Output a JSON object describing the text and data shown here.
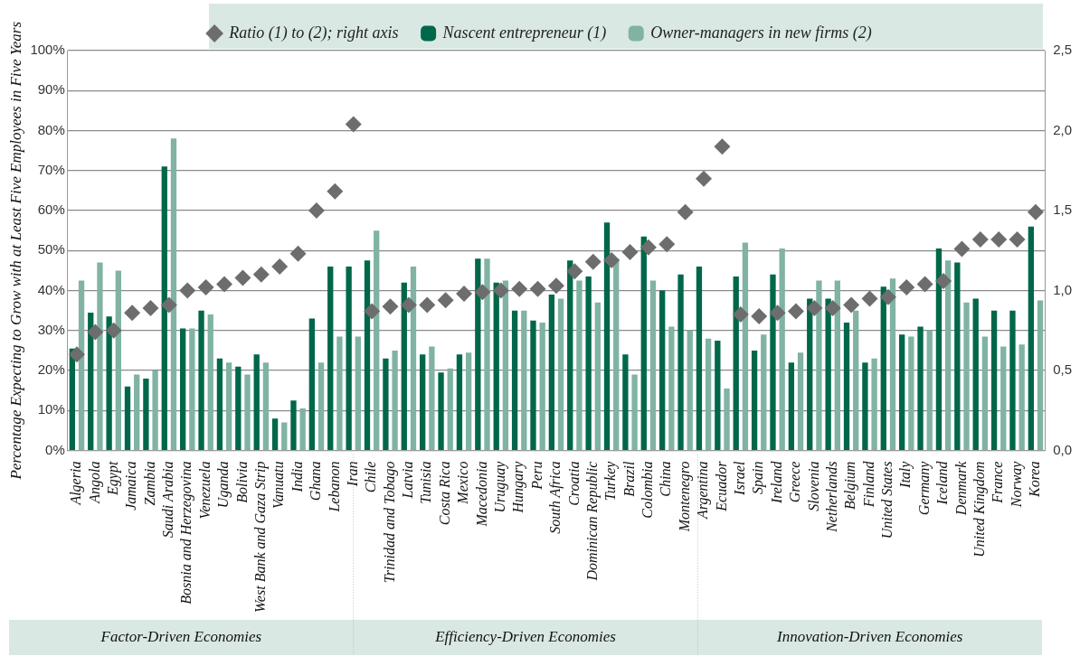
{
  "chart_data": {
    "type": "bar",
    "ylabel": "Percentage Expecting to Grow with at Least Five Employees in Five Years",
    "categories": [
      "Algeria",
      "Angola",
      "Egypt",
      "Jamaica",
      "Zambia",
      "Saudi Arabia",
      "Bosnia and Herzegovina",
      "Venezuela",
      "Uganda",
      "Bolivia",
      "West Bank and Gaza Strip",
      "Vanuatu",
      "India",
      "Ghana",
      "Lebanon",
      "Iran",
      "Chile",
      "Trinidad and Tobago",
      "Latvia",
      "Tunisia",
      "Costa Rica",
      "Mexico",
      "Macedonia",
      "Uruguay",
      "Hungary",
      "Peru",
      "South Africa",
      "Croatia",
      "Dominican Republic",
      "Turkey",
      "Brazil",
      "Colombia",
      "China",
      "Montenegro",
      "Argentina",
      "Ecuador",
      "Israel",
      "Spain",
      "Ireland",
      "Greece",
      "Slovenia",
      "Netherlands",
      "Belgium",
      "Finland",
      "United States",
      "Italy",
      "Germany",
      "Iceland",
      "Denmark",
      "United Kingdom",
      "France",
      "Norway",
      "Korea"
    ],
    "series": [
      {
        "name": "Nascent entrepreneur (1)",
        "color": "#00674a",
        "values": [
          25.5,
          34.5,
          33.5,
          16,
          18,
          71,
          30.5,
          35,
          23,
          21,
          24,
          8,
          12.5,
          33,
          46,
          46,
          47.5,
          23,
          42,
          24,
          19.5,
          24,
          48,
          42,
          35,
          32.5,
          39,
          47.5,
          43.5,
          57,
          24,
          53.5,
          40,
          44,
          46,
          27.5,
          43.5,
          25,
          44,
          22,
          38,
          38,
          32,
          22,
          41,
          29,
          31,
          50.5,
          47,
          38,
          35,
          35,
          56
        ]
      },
      {
        "name": "Owner-managers in new firms (2)",
        "color": "#80b3a4",
        "values": [
          42.5,
          47,
          45,
          19,
          20,
          78,
          30.5,
          34,
          22,
          19,
          22,
          7,
          10.5,
          22,
          28.5,
          28.5,
          55,
          25,
          46,
          26,
          20.5,
          24.5,
          48,
          42.5,
          35,
          32,
          38,
          42.5,
          37,
          48,
          19,
          42.5,
          31,
          30,
          28,
          15.5,
          52,
          29,
          50.5,
          24.5,
          42.5,
          42.5,
          35,
          23,
          43,
          28.5,
          30,
          47.5,
          37,
          28.5,
          26,
          26.5,
          37.5
        ]
      },
      {
        "name": "Ratio (1) to (2); right axis",
        "type": "scatter",
        "axis": "y2",
        "color": "#6d6d6d",
        "values": [
          0.6,
          0.74,
          0.75,
          0.86,
          0.89,
          0.91,
          1.0,
          1.02,
          1.04,
          1.08,
          1.1,
          1.15,
          1.23,
          1.5,
          1.62,
          2.04,
          0.87,
          0.9,
          0.91,
          0.91,
          0.94,
          0.98,
          0.99,
          1.0,
          1.01,
          1.01,
          1.03,
          1.12,
          1.18,
          1.19,
          1.24,
          1.27,
          1.29,
          1.49,
          1.7,
          1.9,
          0.85,
          0.84,
          0.86,
          0.87,
          0.89,
          0.89,
          0.91,
          0.95,
          0.96,
          1.02,
          1.04,
          1.06,
          1.26,
          1.32,
          1.32,
          1.32,
          1.49
        ]
      }
    ],
    "ylim": [
      0,
      100
    ],
    "yticks": [
      {
        "value": 0,
        "label": "0%"
      },
      {
        "value": 10,
        "label": "10%"
      },
      {
        "value": 20,
        "label": "20%"
      },
      {
        "value": 30,
        "label": "30%"
      },
      {
        "value": 40,
        "label": "40%"
      },
      {
        "value": 50,
        "label": "50%"
      },
      {
        "value": 60,
        "label": "60%"
      },
      {
        "value": 70,
        "label": "70%"
      },
      {
        "value": 80,
        "label": "80%"
      },
      {
        "value": 90,
        "label": "90%"
      },
      {
        "value": 100,
        "label": "100%"
      }
    ],
    "y2lim": [
      0,
      2.5
    ],
    "y2ticks": [
      {
        "value": 0,
        "label": "0,0"
      },
      {
        "value": 0.5,
        "label": "0,5"
      },
      {
        "value": 1,
        "label": "1,0"
      },
      {
        "value": 1.5,
        "label": "1,5"
      },
      {
        "value": 2,
        "label": "2,0"
      },
      {
        "value": 2.5,
        "label": "2,5"
      }
    ],
    "annotations": [
      "Factor-Driven Economies",
      "Efficiency-Driven Economies",
      "Innovation-Driven Economies"
    ],
    "marker": "diamond",
    "grid": "y",
    "legend": "top"
  }
}
